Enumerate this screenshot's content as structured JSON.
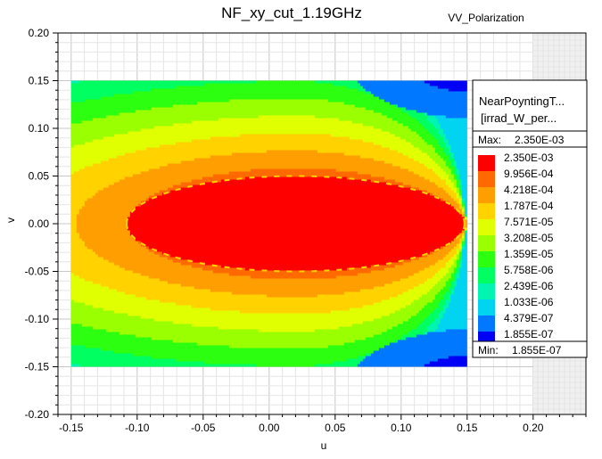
{
  "chart_data": {
    "type": "heatmap",
    "title": "NF_xy_cut_1.19GHz",
    "subtitle": "VV_Polarization",
    "xlabel": "u",
    "ylabel": "v",
    "xlim": [
      -0.16,
      0.24
    ],
    "ylim": [
      -0.2,
      0.2
    ],
    "xticks": [
      "-0.15",
      "-0.10",
      "-0.05",
      "0.00",
      "0.05",
      "0.10",
      "0.15",
      "0.20"
    ],
    "xtick_values": [
      -0.15,
      -0.1,
      -0.05,
      0.0,
      0.05,
      0.1,
      0.15,
      0.2
    ],
    "yticks": [
      "0.20",
      "0.15",
      "0.10",
      "0.05",
      "0.00",
      "-0.05",
      "-0.10",
      "-0.15",
      "-0.20"
    ],
    "ytick_values": [
      0.2,
      0.15,
      0.1,
      0.05,
      0.0,
      -0.05,
      -0.1,
      -0.15,
      -0.2
    ],
    "grid": true,
    "data_extent": {
      "u": [
        -0.15,
        0.15
      ],
      "v": [
        -0.15,
        0.15
      ]
    },
    "shaded_region": {
      "u": [
        0.2,
        0.24
      ]
    },
    "field": {
      "description_units": "irradiance W per m^2",
      "lobe_center": [
        0.02,
        0.0
      ],
      "lobe_half_width_u": 0.128,
      "lobe_half_width_v": 0.05,
      "tip_u": 0.148
    },
    "legend": {
      "placement": "right",
      "header_line1": "NearPoyntingT...",
      "header_line2": "[irrad_W_per...",
      "max_label": "Max:",
      "max_value": "2.350E-03",
      "min_label": "Min:",
      "min_value": "1.855E-07",
      "entries": [
        {
          "label": "2.350E-03",
          "color": "#ff0000"
        },
        {
          "label": "9.956E-04",
          "color": "#ff6a00"
        },
        {
          "label": "4.218E-04",
          "color": "#ff9e00"
        },
        {
          "label": "1.787E-04",
          "color": "#ffd200"
        },
        {
          "label": "7.571E-05",
          "color": "#e0ff00"
        },
        {
          "label": "3.208E-05",
          "color": "#9aff00"
        },
        {
          "label": "1.359E-05",
          "color": "#2cff10"
        },
        {
          "label": "5.758E-06",
          "color": "#00ff60"
        },
        {
          "label": "2.439E-06",
          "color": "#00f5b0"
        },
        {
          "label": "1.033E-06",
          "color": "#00d4f0"
        },
        {
          "label": "4.379E-07",
          "color": "#0078ff"
        },
        {
          "label": "1.855E-07",
          "color": "#0000f5"
        }
      ]
    }
  }
}
